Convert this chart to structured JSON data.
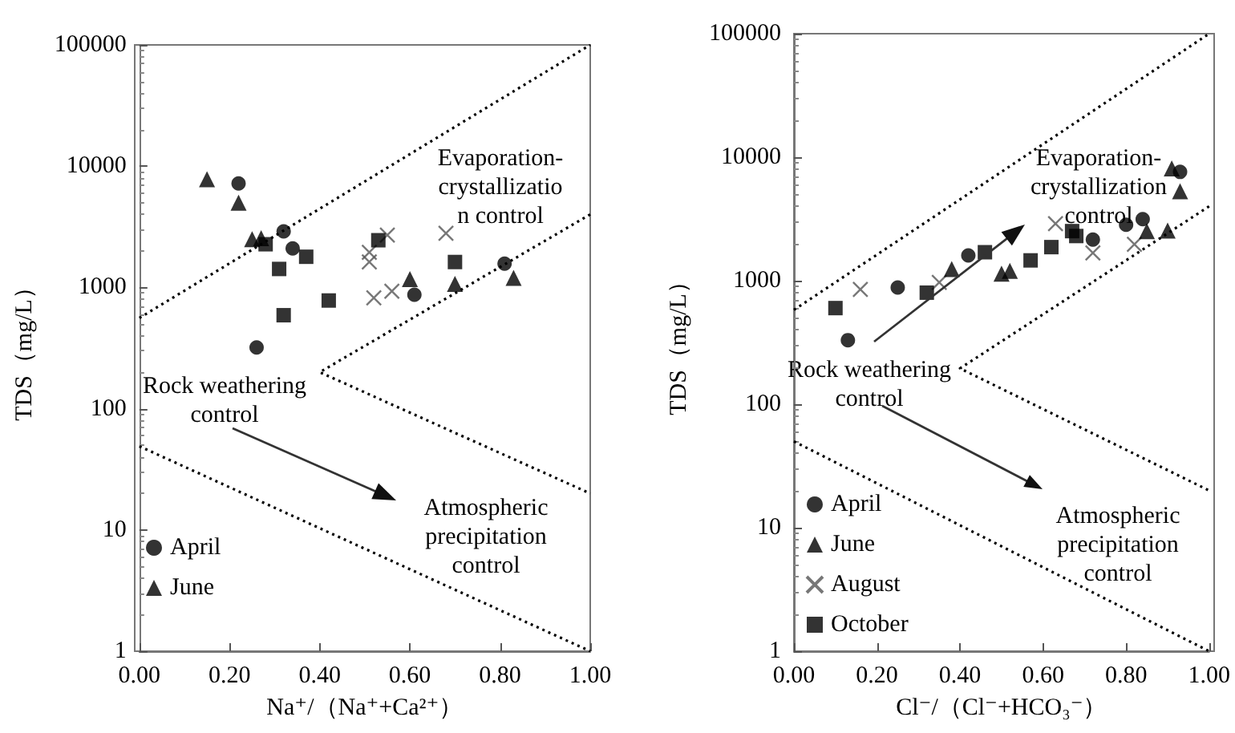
{
  "chart_data": [
    {
      "type": "scatter",
      "xlabel": "Na⁺/（Na⁺+Ca²⁺）",
      "ylabel": "TDS（mg/L）",
      "log": "y",
      "xlim": [
        0,
        1
      ],
      "xticks": [
        {
          "value": 0,
          "label": "0.00"
        },
        {
          "value": 0.2,
          "label": "0.20"
        },
        {
          "value": 0.4,
          "label": "0.40"
        },
        {
          "value": 0.6,
          "label": "0.60"
        },
        {
          "value": 0.8,
          "label": "0.80"
        },
        {
          "value": 1,
          "label": "1.00"
        }
      ],
      "ylim": [
        1,
        100000
      ],
      "yticks": [
        1,
        10,
        100,
        1000,
        10000,
        100000
      ],
      "grid": false,
      "legend": "bottom left",
      "series": [
        {
          "name": "April",
          "color": "#000000",
          "marker": "circle",
          "x": [
            0.22,
            0.32,
            0.34,
            0.61,
            0.81,
            0.26
          ],
          "values": [
            7200,
            2900,
            2100,
            870,
            1570,
            320
          ]
        },
        {
          "name": "June",
          "color": "#000000",
          "marker": "triangle",
          "x": [
            0.15,
            0.22,
            0.25,
            0.27,
            0.6,
            0.7,
            0.83
          ],
          "values": [
            7800,
            5000,
            2500,
            2550,
            1170,
            1070,
            1200
          ]
        },
        {
          "color": "#555555",
          "marker": "cross",
          "x": [
            0.55,
            0.51,
            0.51,
            0.68,
            0.52,
            0.56
          ],
          "values": [
            2700,
            1950,
            1620,
            2800,
            820,
            930
          ]
        },
        {
          "color": "#000000",
          "marker": "square",
          "x": [
            0.28,
            0.53,
            0.37,
            0.31,
            0.7,
            0.42,
            0.32
          ],
          "values": [
            2270,
            2450,
            1790,
            1420,
            1620,
            780,
            590
          ]
        },
        {
          "type": "line",
          "color": "#000000",
          "marker": "none",
          "line_style": "dotted",
          "x": [
            0,
            1
          ],
          "values": [
            560,
            100000
          ]
        },
        {
          "type": "line",
          "color": "#000000",
          "marker": "none",
          "line_style": "dotted",
          "x": [
            1,
            0.4,
            1
          ],
          "values": [
            4000,
            200,
            20
          ]
        },
        {
          "type": "line",
          "color": "#000000",
          "marker": "none",
          "line_style": "dotted",
          "x": [
            0,
            1
          ],
          "values": [
            49,
            1
          ]
        }
      ],
      "annotations": [
        "Evaporation-\ncrystallizatio\nn control",
        "Rock weathering\ncontrol",
        "Atmospheric\nprecipitation\ncontrol"
      ]
    },
    {
      "type": "scatter",
      "xlabel": "Cl⁻/（Cl⁻+HCO₃⁻）",
      "ylabel": "TDS（mg/L）",
      "log": "y",
      "xlim": [
        0,
        1
      ],
      "xticks": [
        {
          "value": 0,
          "label": "0.00"
        },
        {
          "value": 0.2,
          "label": "0.20"
        },
        {
          "value": 0.4,
          "label": "0.40"
        },
        {
          "value": 0.6,
          "label": "0.60"
        },
        {
          "value": 0.8,
          "label": "0.80"
        },
        {
          "value": 1,
          "label": "1.00"
        }
      ],
      "ylim": [
        1,
        100000
      ],
      "yticks": [
        1,
        10,
        100,
        1000,
        10000,
        100000
      ],
      "grid": false,
      "legend": "bottom left",
      "series": [
        {
          "name": "April",
          "color": "#000000",
          "marker": "circle",
          "x": [
            0.25,
            0.42,
            0.72,
            0.8,
            0.84,
            0.93,
            0.13
          ],
          "values": [
            880,
            1600,
            2150,
            2840,
            3150,
            7600,
            330
          ]
        },
        {
          "name": "June",
          "color": "#000000",
          "marker": "triangle",
          "x": [
            0.38,
            0.5,
            0.52,
            0.85,
            0.9,
            0.91,
            0.93
          ],
          "values": [
            1240,
            1140,
            1200,
            2520,
            2550,
            8100,
            5300
          ]
        },
        {
          "name": "August",
          "color": "#555555",
          "marker": "cross",
          "x": [
            0.16,
            0.35,
            0.63,
            0.72,
            0.82
          ],
          "values": [
            850,
            970,
            2900,
            1680,
            1970
          ]
        },
        {
          "name": "October",
          "color": "#000000",
          "marker": "square",
          "x": [
            0.1,
            0.32,
            0.46,
            0.57,
            0.62,
            0.67,
            0.68
          ],
          "values": [
            600,
            800,
            1700,
            1460,
            1870,
            2520,
            2300
          ]
        },
        {
          "type": "line",
          "color": "#000000",
          "marker": "none",
          "line_style": "dotted",
          "x": [
            0,
            1
          ],
          "values": [
            580,
            100000
          ]
        },
        {
          "type": "line",
          "color": "#000000",
          "marker": "none",
          "line_style": "dotted",
          "x": [
            1,
            0.4,
            1
          ],
          "values": [
            4000,
            195,
            20
          ]
        },
        {
          "type": "line",
          "color": "#000000",
          "marker": "none",
          "line_style": "dotted",
          "x": [
            0,
            1
          ],
          "values": [
            50,
            1
          ]
        }
      ],
      "annotations": [
        "Evaporation-\ncrystallization\ncontrol",
        "Rock weathering\ncontrol",
        "Atmospheric\nprecipitation\ncontrol"
      ]
    }
  ]
}
